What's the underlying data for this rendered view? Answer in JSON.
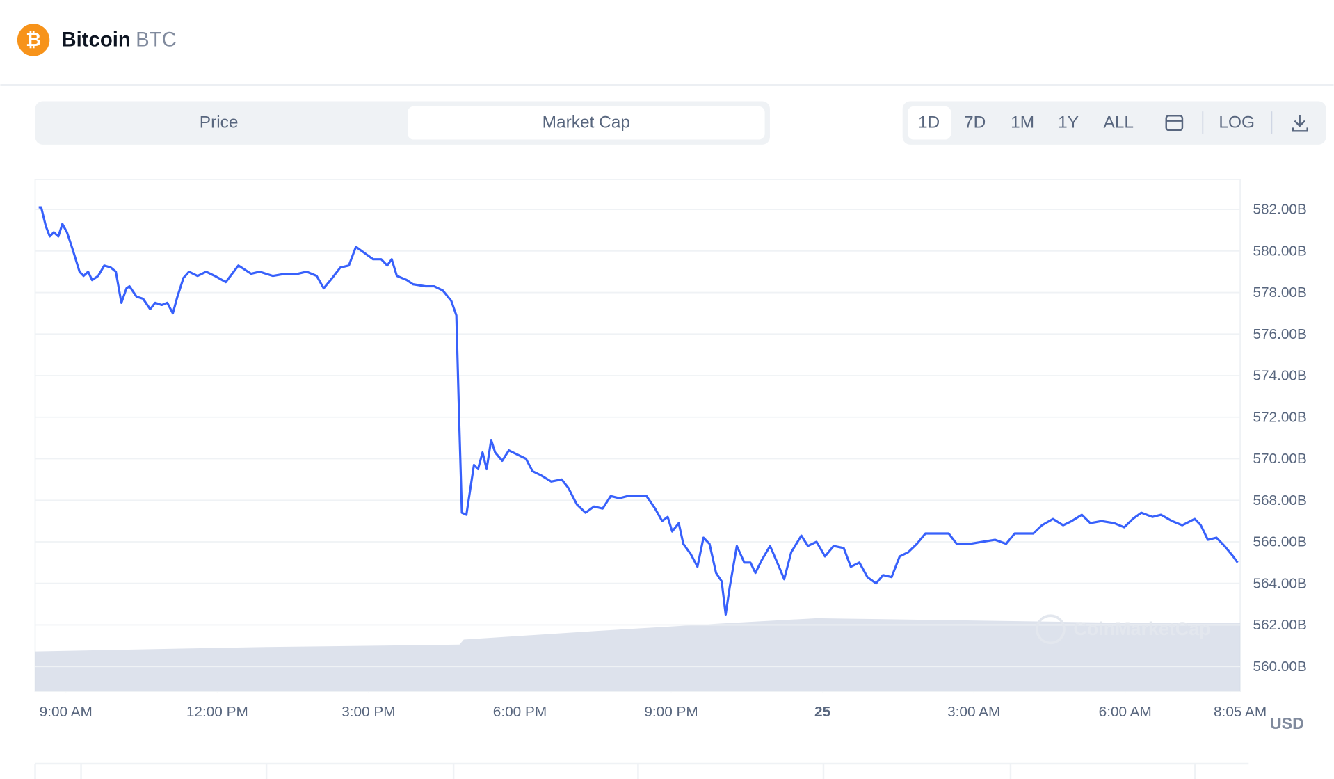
{
  "header": {
    "name": "Bitcoin",
    "symbol": "BTC"
  },
  "tabs": [
    "Price",
    "Market Cap"
  ],
  "active_tab": 1,
  "ranges": [
    "1D",
    "7D",
    "1M",
    "1Y",
    "ALL"
  ],
  "active_range": 0,
  "log_button": "LOG",
  "chart_data": {
    "type": "line",
    "color": "#3861fb",
    "currency": "USD",
    "watermark": "CoinMarketCap",
    "grid": true,
    "xlim": [
      8.39,
      32.28
    ],
    "ylim": [
      558.8,
      583.4
    ],
    "yticks": [
      {
        "value": 560,
        "label": "560.00B"
      },
      {
        "value": 562,
        "label": "562.00B"
      },
      {
        "value": 564,
        "label": "564.00B"
      },
      {
        "value": 566,
        "label": "566.00B"
      },
      {
        "value": 568,
        "label": "568.00B"
      },
      {
        "value": 570,
        "label": "570.00B"
      },
      {
        "value": 572,
        "label": "572.00B"
      },
      {
        "value": 574,
        "label": "574.00B"
      },
      {
        "value": 576,
        "label": "576.00B"
      },
      {
        "value": 578,
        "label": "578.00B"
      },
      {
        "value": 580,
        "label": "580.00B"
      },
      {
        "value": 582,
        "label": "582.00B"
      }
    ],
    "xticks": [
      {
        "value": 9,
        "label": "9:00 AM"
      },
      {
        "value": 12,
        "label": "12:00 PM"
      },
      {
        "value": 15,
        "label": "3:00 PM"
      },
      {
        "value": 18,
        "label": "6:00 PM"
      },
      {
        "value": 21,
        "label": "9:00 PM"
      },
      {
        "value": 24,
        "label": "25"
      },
      {
        "value": 27,
        "label": "3:00 AM"
      },
      {
        "value": 30,
        "label": "6:00 AM"
      },
      {
        "value": 32.08,
        "label": "8:05 AM"
      }
    ],
    "x": [
      8.46,
      8.51,
      8.6,
      8.68,
      8.76,
      8.85,
      8.93,
      9.02,
      9.13,
      9.27,
      9.35,
      9.44,
      9.52,
      9.64,
      9.76,
      9.89,
      9.99,
      10.1,
      10.2,
      10.26,
      10.4,
      10.53,
      10.67,
      10.77,
      10.9,
      11.01,
      11.12,
      11.21,
      11.33,
      11.44,
      11.61,
      11.78,
      11.95,
      12.17,
      12.42,
      12.67,
      12.84,
      13.1,
      13.35,
      13.6,
      13.77,
      13.97,
      14.11,
      14.28,
      14.44,
      14.61,
      14.75,
      14.92,
      15.09,
      15.25,
      15.37,
      15.46,
      15.56,
      15.76,
      15.88,
      16.13,
      16.3,
      16.47,
      16.64,
      16.74,
      16.8,
      16.85,
      16.94,
      17.09,
      17.17,
      17.26,
      17.34,
      17.43,
      17.51,
      17.65,
      17.78,
      17.95,
      18.12,
      18.25,
      18.42,
      18.62,
      18.83,
      18.96,
      19.13,
      19.3,
      19.47,
      19.64,
      19.8,
      19.97,
      20.14,
      20.31,
      20.51,
      20.68,
      20.82,
      20.93,
      21.02,
      21.15,
      21.24,
      21.39,
      21.52,
      21.64,
      21.76,
      21.89,
      22.0,
      22.08,
      22.16,
      22.3,
      22.45,
      22.57,
      22.67,
      22.79,
      22.96,
      23.12,
      23.24,
      23.38,
      23.58,
      23.71,
      23.88,
      24.05,
      24.22,
      24.42,
      24.56,
      24.73,
      24.89,
      25.06,
      25.2,
      25.37,
      25.53,
      25.7,
      25.87,
      26.04,
      26.24,
      26.5,
      26.66,
      26.92,
      27.17,
      27.42,
      27.64,
      27.81,
      28.01,
      28.18,
      28.35,
      28.57,
      28.77,
      28.94,
      29.14,
      29.31,
      29.53,
      29.78,
      29.98,
      30.15,
      30.32,
      30.54,
      30.71,
      30.93,
      31.13,
      31.38,
      31.5,
      31.64,
      31.81,
      31.97,
      32.14,
      32.23
    ],
    "values": [
      582.1,
      582.1,
      581.2,
      580.7,
      580.9,
      580.7,
      581.3,
      580.9,
      580.1,
      579.0,
      578.8,
      579.0,
      578.6,
      578.8,
      579.3,
      579.2,
      579.0,
      577.5,
      578.2,
      578.3,
      577.8,
      577.7,
      577.2,
      577.5,
      577.4,
      577.5,
      577.0,
      577.8,
      578.7,
      579.0,
      578.8,
      579.0,
      578.8,
      578.5,
      579.3,
      578.9,
      579.0,
      578.8,
      578.9,
      578.9,
      579.0,
      578.8,
      578.2,
      578.7,
      579.2,
      579.3,
      580.2,
      579.9,
      579.6,
      579.6,
      579.3,
      579.6,
      578.8,
      578.6,
      578.4,
      578.3,
      578.3,
      578.1,
      577.6,
      576.9,
      571.6,
      567.4,
      567.3,
      569.7,
      569.5,
      570.3,
      569.5,
      570.9,
      570.3,
      569.9,
      570.4,
      570.2,
      570.0,
      569.4,
      569.2,
      568.9,
      569.0,
      568.6,
      567.8,
      567.4,
      567.7,
      567.6,
      568.2,
      568.1,
      568.2,
      568.2,
      568.2,
      567.6,
      567.0,
      567.2,
      566.5,
      566.9,
      565.9,
      565.4,
      564.8,
      566.2,
      565.9,
      564.5,
      564.1,
      562.5,
      563.8,
      565.8,
      565.0,
      565.0,
      564.5,
      565.1,
      565.8,
      564.9,
      564.2,
      565.5,
      566.3,
      565.8,
      566.0,
      565.3,
      565.8,
      565.7,
      564.8,
      565.0,
      564.3,
      564.0,
      564.4,
      564.3,
      565.3,
      565.5,
      565.9,
      566.4,
      566.4,
      566.4,
      565.9,
      565.9,
      566.0,
      566.1,
      565.9,
      566.4,
      566.4,
      566.4,
      566.8,
      567.1,
      566.8,
      567.0,
      567.3,
      566.9,
      567.0,
      566.9,
      566.7,
      567.1,
      567.4,
      567.2,
      567.3,
      567.0,
      566.8,
      567.1,
      566.8,
      566.1,
      566.2,
      565.8,
      565.3,
      565.0
    ]
  }
}
